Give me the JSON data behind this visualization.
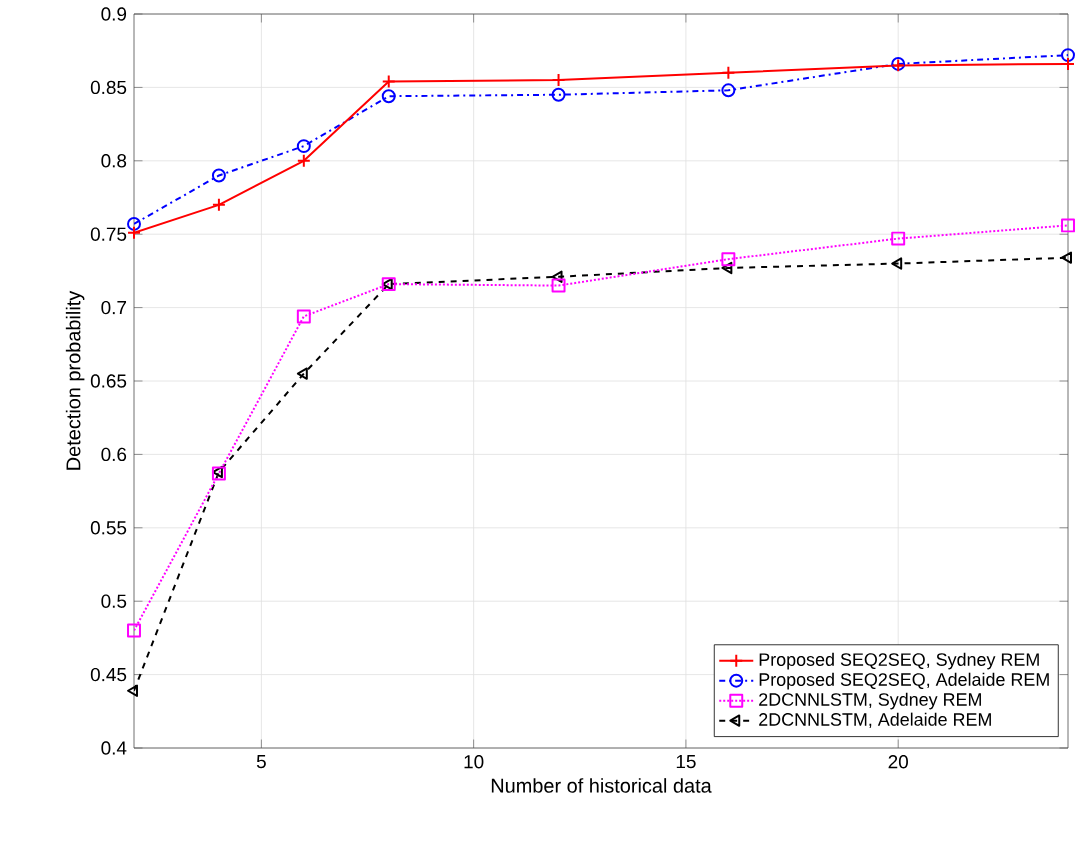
{
  "chart_data": {
    "type": "line",
    "xlabel": "Number of historical data",
    "ylabel": "Detection probability",
    "x": [
      2,
      4,
      6,
      8,
      12,
      16,
      20,
      24
    ],
    "series": [
      {
        "name": "Proposed SEQ2SEQ, Sydney REM",
        "color": "#ff0000",
        "marker": "cross",
        "line_style": "solid",
        "values": [
          0.751,
          0.77,
          0.8,
          0.854,
          0.855,
          0.86,
          0.865,
          0.866
        ]
      },
      {
        "name": "Proposed SEQ2SEQ, Adelaide REM",
        "color": "#0000ff",
        "marker": "circle",
        "line_style": "dashdot",
        "values": [
          0.757,
          0.79,
          0.81,
          0.844,
          0.845,
          0.848,
          0.866,
          0.872
        ]
      },
      {
        "name": "2DCNNLSTM, Sydney REM",
        "color": "#ff00ff",
        "marker": "square",
        "line_style": "dotted",
        "values": [
          0.48,
          0.587,
          0.694,
          0.716,
          0.715,
          0.733,
          0.747,
          0.756
        ]
      },
      {
        "name": "2DCNNLSTM, Adelaide REM",
        "color": "#000000",
        "marker": "triangle",
        "line_style": "dashed",
        "values": [
          0.439,
          0.588,
          0.655,
          0.716,
          0.721,
          0.727,
          0.73,
          0.734
        ]
      }
    ],
    "xlim": [
      2,
      24
    ],
    "xticks": [
      5,
      10,
      15,
      20
    ],
    "ylim": [
      0.4,
      0.9
    ],
    "yticks": [
      0.4,
      0.45,
      0.5,
      0.55,
      0.6,
      0.65,
      0.7,
      0.75,
      0.8,
      0.85,
      0.9
    ],
    "grid": true,
    "legend": "bottom right"
  }
}
